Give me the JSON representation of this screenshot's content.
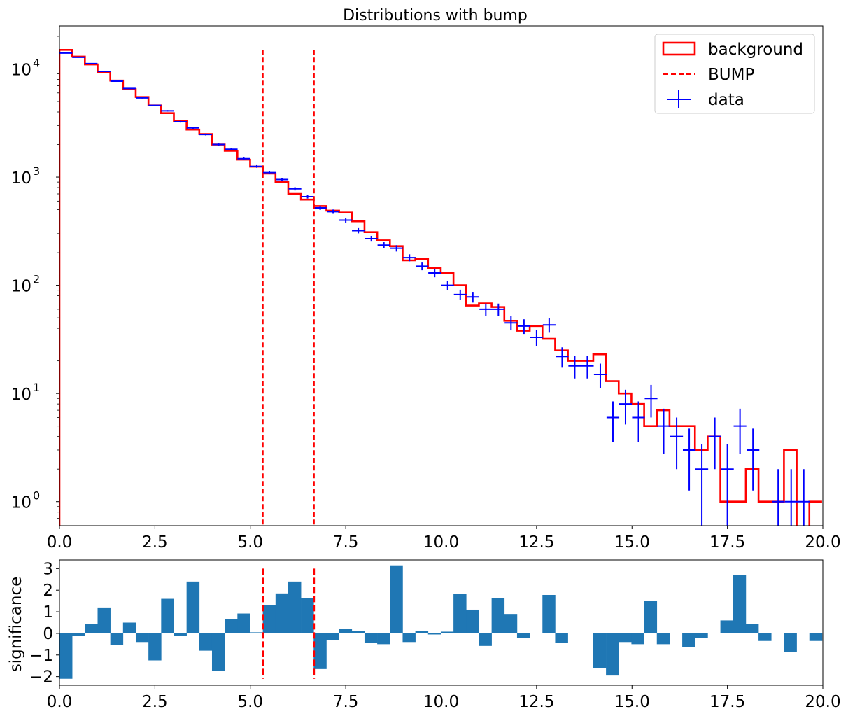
{
  "title": "Distributions with bump",
  "colors": {
    "background": "#ff0000",
    "data": "#0000ff",
    "bump": "#ff0000",
    "sig": "#1f77b4"
  },
  "legend": {
    "items": [
      {
        "label": "background",
        "kind": "step"
      },
      {
        "label": "BUMP",
        "kind": "dashed"
      },
      {
        "label": "data",
        "kind": "errorbar"
      }
    ]
  },
  "chart_data": [
    {
      "type": "step",
      "title": "Distributions with bump",
      "xlabel": "",
      "ylabel": "",
      "xlim": [
        0,
        20
      ],
      "ylim": [
        0.6,
        25000
      ],
      "yscale": "log",
      "xticks": [
        "0.0",
        "2.5",
        "5.0",
        "7.5",
        "10.0",
        "12.5",
        "15.0",
        "17.5",
        "20.0"
      ],
      "yticks": [
        {
          "value": 1,
          "base": "10",
          "exp": "0"
        },
        {
          "value": 10,
          "base": "10",
          "exp": "1"
        },
        {
          "value": 100,
          "base": "10",
          "exp": "2"
        },
        {
          "value": 1000,
          "base": "10",
          "exp": "3"
        },
        {
          "value": 10000,
          "base": "10",
          "exp": "4"
        }
      ],
      "bin_width": 0.333,
      "bump_range": [
        5.33,
        6.67
      ],
      "series": [
        {
          "name": "background",
          "values": [
            15000,
            13000,
            11000,
            9300,
            7800,
            6500,
            5500,
            4600,
            3900,
            3300,
            2750,
            2500,
            2000,
            1750,
            1450,
            1250,
            1080,
            900,
            700,
            620,
            540,
            490,
            470,
            390,
            310,
            260,
            230,
            170,
            175,
            145,
            130,
            100,
            65,
            68,
            63,
            47,
            38,
            42,
            32,
            25,
            20,
            20,
            23,
            13,
            10,
            8,
            5,
            7,
            5,
            5,
            3,
            4,
            1,
            1,
            2,
            1,
            1,
            3,
            0.5,
            1
          ],
          "legend": "background"
        },
        {
          "name": "data",
          "x": [
            0.17,
            0.5,
            0.83,
            1.17,
            1.5,
            1.83,
            2.17,
            2.5,
            2.83,
            3.17,
            3.5,
            3.83,
            4.17,
            4.5,
            4.83,
            5.17,
            5.5,
            5.83,
            6.17,
            6.5,
            6.83,
            7.17,
            7.5,
            7.83,
            8.17,
            8.5,
            8.83,
            9.17,
            9.5,
            9.83,
            10.17,
            10.5,
            10.83,
            11.17,
            11.5,
            11.83,
            12.17,
            12.5,
            12.83,
            13.17,
            13.5,
            13.83,
            14.17,
            14.5,
            14.83,
            15.17,
            15.5,
            15.83,
            16.17,
            16.5,
            16.83,
            17.17,
            17.5,
            17.83,
            18.17,
            18.83,
            19.17,
            19.5
          ],
          "y": [
            14000,
            12800,
            11200,
            9500,
            7700,
            6600,
            5400,
            4600,
            4100,
            3250,
            2850,
            2480,
            2000,
            1810,
            1480,
            1255,
            1100,
            950,
            780,
            660,
            520,
            480,
            400,
            320,
            270,
            235,
            220,
            180,
            150,
            130,
            100,
            82,
            78,
            60,
            60,
            45,
            42,
            33,
            43,
            22,
            18,
            18,
            15,
            6,
            8,
            6,
            9,
            5,
            4,
            3,
            2,
            4,
            2,
            5,
            3,
            1,
            1,
            1
          ],
          "legend": "data"
        }
      ]
    },
    {
      "type": "bar",
      "xlabel": "",
      "ylabel": "significance",
      "xlim": [
        0,
        20
      ],
      "ylim": [
        -2.4,
        3.4
      ],
      "xticks": [
        "0.0",
        "2.5",
        "5.0",
        "7.5",
        "10.0",
        "12.5",
        "15.0",
        "17.5",
        "20.0"
      ],
      "yticks": [
        "−2",
        "−1",
        "0",
        "1",
        "2",
        "3"
      ],
      "bin_width": 0.333,
      "values": [
        -2.1,
        -0.1,
        0.45,
        1.2,
        -0.55,
        0.5,
        -0.4,
        -1.25,
        1.6,
        -0.1,
        2.4,
        -0.8,
        -1.75,
        0.65,
        0.92,
        0.05,
        1.3,
        1.85,
        2.4,
        1.65,
        -1.65,
        -0.3,
        0.2,
        0.1,
        -0.45,
        -0.5,
        3.15,
        -0.4,
        0.12,
        -0.05,
        0.08,
        1.82,
        1.1,
        -0.58,
        1.65,
        0.9,
        -0.2,
        0,
        1.78,
        -0.45,
        0,
        0,
        -1.6,
        -1.95,
        -0.4,
        -0.5,
        1.5,
        -0.5,
        0,
        -0.62,
        -0.2,
        0,
        0.6,
        2.7,
        0.45,
        -0.35,
        0,
        -0.85,
        0,
        -0.35
      ]
    }
  ]
}
